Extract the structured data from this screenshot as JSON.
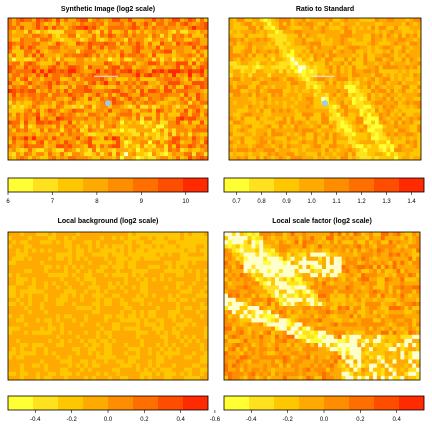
{
  "chart_data": [
    {
      "type": "heatmap",
      "title": "Synthetic Image (log2 scale)",
      "palette": [
        "#ffff33",
        "#ffe21d",
        "#ffc700",
        "#ffaa00",
        "#ff8d00",
        "#ff6f00",
        "#ff4d00",
        "#ff2a00"
      ],
      "colorbar": {
        "range": [
          6,
          10.5
        ],
        "ticks": [
          6,
          7,
          8,
          9,
          10
        ],
        "tick_labels": [
          "6",
          "7",
          "8",
          "9",
          "10"
        ]
      },
      "texture": "noisy-horizontal-bands"
    },
    {
      "type": "heatmap",
      "title": "Ratio to Standard",
      "palette": [
        "#ffff33",
        "#ffe21d",
        "#ffc700",
        "#ffaa00",
        "#ff8d00",
        "#ff6f00",
        "#ff4d00",
        "#ff2a00"
      ],
      "colorbar": {
        "range": [
          0.65,
          1.45
        ],
        "ticks": [
          0.7,
          0.8,
          0.9,
          1.0,
          1.1,
          1.2,
          1.3,
          1.4
        ],
        "tick_labels": [
          "0.7",
          "0.8",
          "0.9",
          "1.0",
          "1.1",
          "1.2",
          "1.3",
          "1.4"
        ]
      },
      "texture": "smooth-with-light-streaks"
    },
    {
      "type": "heatmap",
      "title": "Local background (log2 scale)",
      "palette": [
        "#ffff33",
        "#ffe21d",
        "#ffc700",
        "#ffaa00",
        "#ff8d00",
        "#ff6f00",
        "#ff4d00",
        "#ff2a00"
      ],
      "colorbar": {
        "range": [
          -0.55,
          0.55
        ],
        "ticks": [
          -0.4,
          -0.2,
          0.0,
          0.2,
          0.4
        ],
        "tick_labels": [
          "-0.4",
          "-0.2",
          "0.0",
          "0.2",
          "0.4"
        ]
      },
      "texture": "uniform-mid"
    },
    {
      "type": "heatmap",
      "title": "Local scale factor (log2 scale)",
      "palette": [
        "#ffff33",
        "#ffe21d",
        "#ffc700",
        "#ffaa00",
        "#ff8d00",
        "#ff6f00",
        "#ff4d00",
        "#ff2a00"
      ],
      "colorbar": {
        "range": [
          -0.55,
          0.55
        ],
        "ticks": [
          -0.6,
          -0.4,
          -0.2,
          0.0,
          0.2,
          0.4
        ],
        "tick_labels": [
          "-0.6",
          "-0.4",
          "-0.2",
          "0.0",
          "0.2",
          "0.4"
        ]
      },
      "texture": "smooth-with-white-streaks"
    }
  ]
}
